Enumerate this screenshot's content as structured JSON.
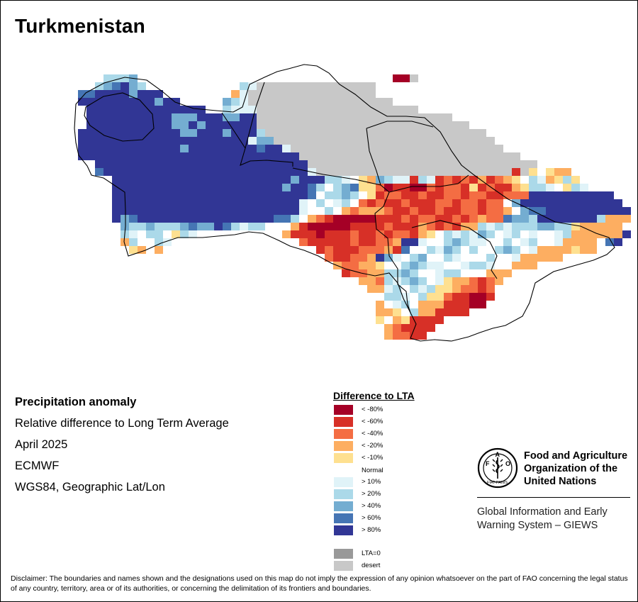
{
  "map": {
    "title": "Turkmenistan"
  },
  "info": {
    "lines": [
      "Precipitation anomaly",
      "Relative difference to Long Term Average",
      "April 2025",
      "ECMWF",
      "WGS84, Geographic Lat/Lon"
    ]
  },
  "legend": {
    "title": "Difference to LTA",
    "dry": [
      {
        "label": "< -80%",
        "color": "#a50026"
      },
      {
        "label": "< -60%",
        "color": "#d73027"
      },
      {
        "label": "< -40%",
        "color": "#f46d43"
      },
      {
        "label": "< -20%",
        "color": "#fdae61"
      },
      {
        "label": "< -10%",
        "color": "#fee090"
      }
    ],
    "normal_label": "Normal",
    "wet": [
      {
        "label": "> 10%",
        "color": "#e0f3f8"
      },
      {
        "label": "> 20%",
        "color": "#abd9e9"
      },
      {
        "label": "> 40%",
        "color": "#74add1"
      },
      {
        "label": "> 60%",
        "color": "#4575b4"
      },
      {
        "label": "> 80%",
        "color": "#313695"
      }
    ],
    "extra": [
      {
        "label": "LTA=0",
        "color": "#999999"
      },
      {
        "label": "desert",
        "color": "#c8c8c8"
      }
    ]
  },
  "org": {
    "name": "Food and Agriculture Organization of the United Nations",
    "emblem_letters": "FAO",
    "emblem_motto": "FIAT PANIS",
    "giews": "Global Information and Early Warning System – GIEWS"
  },
  "disclaimer": "Disclaimer: The boundaries and names shown and the designations used on this map do not imply the expression of any opinion whatsoever on the part of FAO concerning the legal status of any country, territory, area or of its authorities, or concerning the delimitation of its frontiers and boundaries.",
  "colors": {
    "border": "#000000",
    "background": "#ffffff"
  }
}
